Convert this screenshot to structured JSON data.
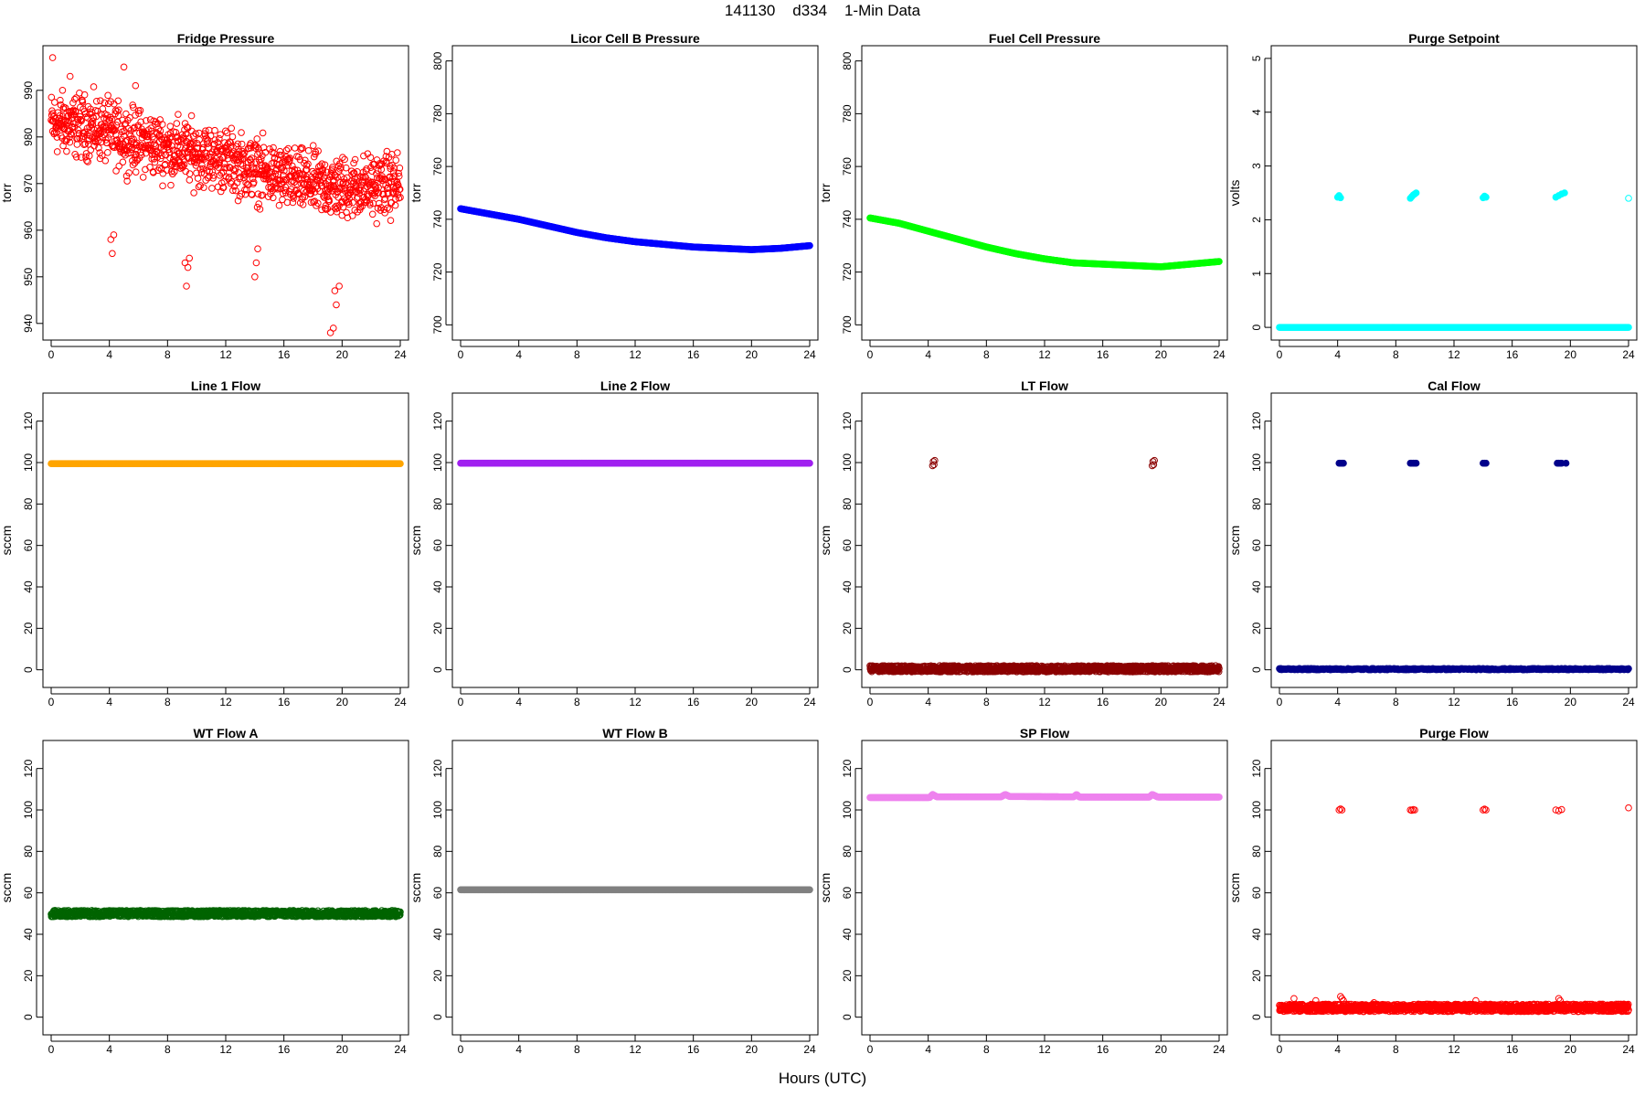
{
  "figure": {
    "title": "141130    d334    1-Min Data",
    "xlabel": "Hours (UTC)"
  },
  "chart_data": [
    {
      "type": "scatter",
      "title": "Fridge Pressure",
      "ylabel": "torr",
      "color": "#ff0000",
      "marker": "open",
      "xlim": [
        0,
        24
      ],
      "ylim": [
        938,
        998
      ],
      "xticks": [
        0,
        4,
        8,
        12,
        16,
        20,
        24
      ],
      "yticks": [
        940,
        950,
        960,
        970,
        980,
        990
      ],
      "series": [
        {
          "kind": "noisy-trend",
          "x": [
            0,
            3,
            6,
            9,
            12,
            16,
            20,
            24
          ],
          "y": [
            983,
            982,
            979,
            977,
            975,
            971,
            969,
            970
          ],
          "noise": 5
        },
        {
          "kind": "points",
          "x": [
            4.1,
            4.2,
            4.3,
            9.2,
            9.3,
            9.4,
            9.5,
            14.0,
            14.1,
            14.2,
            19.2,
            19.4,
            19.6,
            19.8,
            19.5,
            0.1,
            1.3,
            5.0,
            5.8
          ],
          "y": [
            958,
            955,
            959,
            953,
            948,
            952,
            954,
            950,
            953,
            956,
            938,
            939,
            944,
            948,
            947,
            997,
            993,
            995,
            991
          ]
        }
      ]
    },
    {
      "type": "line",
      "title": "Licor Cell B Pressure",
      "ylabel": "torr",
      "color": "#0000ff",
      "marker": "filled",
      "xlim": [
        0,
        24
      ],
      "ylim": [
        697,
        803
      ],
      "xticks": [
        0,
        4,
        8,
        12,
        16,
        20,
        24
      ],
      "yticks": [
        700,
        720,
        740,
        760,
        780,
        800
      ],
      "series": [
        {
          "kind": "curve",
          "x": [
            0,
            2,
            4,
            6,
            8,
            10,
            12,
            14,
            16,
            18,
            20,
            22,
            24
          ],
          "y": [
            744,
            742,
            740,
            737.5,
            735,
            733,
            731.5,
            730.5,
            729.5,
            729,
            728.5,
            729,
            730
          ]
        }
      ]
    },
    {
      "type": "line",
      "title": "Fuel Cell Pressure",
      "ylabel": "torr",
      "color": "#00ff00",
      "marker": "filled",
      "xlim": [
        0,
        24
      ],
      "ylim": [
        697,
        803
      ],
      "xticks": [
        0,
        4,
        8,
        12,
        16,
        20,
        24
      ],
      "yticks": [
        700,
        720,
        740,
        760,
        780,
        800
      ],
      "series": [
        {
          "kind": "curve",
          "x": [
            0,
            2,
            4,
            6,
            8,
            10,
            12,
            14,
            16,
            18,
            20,
            22,
            24
          ],
          "y": [
            740.5,
            738.5,
            735.5,
            732.5,
            729.5,
            727,
            725,
            723.5,
            723,
            722.5,
            722,
            723,
            724
          ]
        }
      ]
    },
    {
      "type": "scatter",
      "title": "Purge Setpoint",
      "ylabel": "volts",
      "color": "#00ffff",
      "marker": "filled",
      "xlim": [
        0,
        24
      ],
      "ylim": [
        -0.1,
        5.1
      ],
      "xticks": [
        0,
        4,
        8,
        12,
        16,
        20,
        24
      ],
      "yticks": [
        0,
        1,
        2,
        3,
        4,
        5
      ],
      "series": [
        {
          "kind": "flat",
          "x0": 0,
          "x1": 24,
          "y": 0,
          "noise": 0
        },
        {
          "kind": "points",
          "x": [
            4.0,
            4.1,
            4.2,
            9.0,
            9.1,
            9.2,
            9.3,
            9.4,
            14.0,
            14.1,
            14.2,
            19.0,
            19.2,
            19.4,
            19.6
          ],
          "y": [
            2.42,
            2.45,
            2.41,
            2.4,
            2.43,
            2.46,
            2.48,
            2.5,
            2.41,
            2.44,
            2.42,
            2.42,
            2.45,
            2.48,
            2.5
          ]
        },
        {
          "kind": "points",
          "x": [
            24.0
          ],
          "y": [
            2.4
          ],
          "open": true
        }
      ]
    },
    {
      "type": "line",
      "title": "Line 1 Flow",
      "ylabel": "sccm",
      "color": "#ffa500",
      "marker": "filled",
      "xlim": [
        0,
        24
      ],
      "ylim": [
        -5,
        130
      ],
      "xticks": [
        0,
        4,
        8,
        12,
        16,
        20,
        24
      ],
      "yticks": [
        0,
        20,
        40,
        60,
        80,
        100,
        120
      ],
      "series": [
        {
          "kind": "flat",
          "x0": 0,
          "x1": 24,
          "y": 99.5,
          "noise": 0
        }
      ]
    },
    {
      "type": "line",
      "title": "Line 2 Flow",
      "ylabel": "sccm",
      "color": "#a020f0",
      "marker": "filled",
      "xlim": [
        0,
        24
      ],
      "ylim": [
        -5,
        130
      ],
      "xticks": [
        0,
        4,
        8,
        12,
        16,
        20,
        24
      ],
      "yticks": [
        0,
        20,
        40,
        60,
        80,
        100,
        120
      ],
      "series": [
        {
          "kind": "flat",
          "x0": 0,
          "x1": 24,
          "y": 99.7,
          "noise": 0
        }
      ]
    },
    {
      "type": "scatter",
      "title": "LT Flow",
      "ylabel": "sccm",
      "color": "#8b0000",
      "marker": "open-dense",
      "xlim": [
        0,
        24
      ],
      "ylim": [
        -5,
        130
      ],
      "xticks": [
        0,
        4,
        8,
        12,
        16,
        20,
        24
      ],
      "yticks": [
        0,
        20,
        40,
        60,
        80,
        100,
        120
      ],
      "series": [
        {
          "kind": "flat",
          "x0": 0,
          "x1": 24,
          "y": 0.5,
          "noise": 1.5
        },
        {
          "kind": "points",
          "x": [
            4.3,
            4.35,
            4.4,
            4.45,
            19.4,
            19.45,
            19.5,
            19.55
          ],
          "y": [
            98.5,
            100.5,
            99,
            101,
            98.5,
            100.5,
            99,
            101
          ]
        }
      ]
    },
    {
      "type": "scatter",
      "title": "Cal Flow",
      "ylabel": "sccm",
      "color": "#00008b",
      "marker": "filled",
      "xlim": [
        0,
        24
      ],
      "ylim": [
        -5,
        130
      ],
      "xticks": [
        0,
        4,
        8,
        12,
        16,
        20,
        24
      ],
      "yticks": [
        0,
        20,
        40,
        60,
        80,
        100,
        120
      ],
      "series": [
        {
          "kind": "flat",
          "x0": 0,
          "x1": 24,
          "y": 0.3,
          "noise": 0.3
        },
        {
          "kind": "points",
          "x": [
            4.1,
            4.2,
            4.3,
            4.4,
            9.0,
            9.1,
            9.2,
            9.3,
            9.4,
            14.0,
            14.1,
            14.2,
            19.1,
            19.2,
            19.3,
            19.4,
            19.7
          ],
          "y": [
            99.7,
            99.7,
            99.7,
            99.7,
            99.7,
            99.7,
            99.7,
            99.7,
            99.7,
            99.7,
            99.7,
            99.7,
            99.7,
            99.7,
            99.7,
            99.7,
            99.7
          ]
        }
      ]
    },
    {
      "type": "scatter",
      "title": "WT Flow A",
      "ylabel": "sccm",
      "color": "#006400",
      "marker": "open-dense",
      "xlim": [
        0,
        24
      ],
      "ylim": [
        -5,
        130
      ],
      "xticks": [
        0,
        4,
        8,
        12,
        16,
        20,
        24
      ],
      "yticks": [
        0,
        20,
        40,
        60,
        80,
        100,
        120
      ],
      "series": [
        {
          "kind": "flat",
          "x0": 0,
          "x1": 24,
          "y": 50,
          "noise": 1.5
        }
      ]
    },
    {
      "type": "line",
      "title": "WT Flow B",
      "ylabel": "sccm",
      "color": "#808080",
      "marker": "filled",
      "xlim": [
        0,
        24
      ],
      "ylim": [
        -5,
        130
      ],
      "xticks": [
        0,
        4,
        8,
        12,
        16,
        20,
        24
      ],
      "yticks": [
        0,
        20,
        40,
        60,
        80,
        100,
        120
      ],
      "series": [
        {
          "kind": "flat",
          "x0": 0,
          "x1": 24,
          "y": 61.5,
          "noise": 0
        }
      ]
    },
    {
      "type": "line",
      "title": "SP Flow",
      "ylabel": "sccm",
      "color": "#ee82ee",
      "marker": "filled",
      "xlim": [
        0,
        24
      ],
      "ylim": [
        -5,
        130
      ],
      "xticks": [
        0,
        4,
        8,
        12,
        16,
        20,
        24
      ],
      "yticks": [
        0,
        20,
        40,
        60,
        80,
        100,
        120
      ],
      "series": [
        {
          "kind": "curve",
          "x": [
            0,
            4.1,
            4.3,
            4.6,
            9.0,
            9.3,
            9.6,
            14.0,
            14.2,
            14.4,
            19.2,
            19.4,
            19.8,
            24
          ],
          "y": [
            106,
            106,
            107.5,
            106.3,
            106.3,
            107.5,
            106.5,
            106.3,
            107.5,
            106.2,
            106.2,
            107.5,
            106.2,
            106.2
          ]
        }
      ]
    },
    {
      "type": "scatter",
      "title": "Purge Flow",
      "ylabel": "sccm",
      "color": "#ff0000",
      "marker": "open-dense",
      "xlim": [
        0,
        24
      ],
      "ylim": [
        -5,
        130
      ],
      "xticks": [
        0,
        4,
        8,
        12,
        16,
        20,
        24
      ],
      "yticks": [
        0,
        20,
        40,
        60,
        80,
        100,
        120
      ],
      "series": [
        {
          "kind": "flat",
          "x0": 0,
          "x1": 24,
          "y": 4.5,
          "noise": 1.8
        },
        {
          "kind": "points",
          "x": [
            4.1,
            4.2,
            4.3,
            9.0,
            9.1,
            9.2,
            9.3,
            14.0,
            14.1,
            14.2,
            19.0,
            19.2,
            19.4,
            24.0
          ],
          "y": [
            100,
            100.5,
            100,
            100,
            99.8,
            100.2,
            100,
            100,
            100.4,
            100,
            100,
            99.6,
            100.2,
            101
          ]
        },
        {
          "kind": "points",
          "x": [
            4.2,
            4.3,
            4.4,
            19.2,
            19.3,
            1.0,
            2.5,
            6.5,
            13.5
          ],
          "y": [
            10,
            9,
            8,
            9,
            8,
            9,
            8,
            7,
            8
          ]
        }
      ]
    }
  ]
}
